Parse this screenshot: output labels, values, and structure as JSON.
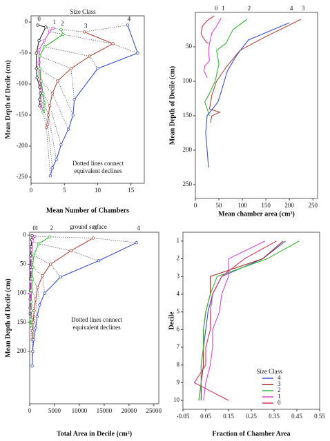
{
  "chart_data": [
    {
      "type": "line",
      "xlabel": "Mean Number of Chambers",
      "ylabel": "Mean Depth of Decile (cm)",
      "xlim": [
        0,
        17
      ],
      "ylim": [
        -260,
        10
      ],
      "xticks": [
        0,
        5,
        10,
        15
      ],
      "yticks": [
        0,
        -50,
        -100,
        -150,
        -200,
        -250
      ],
      "markers": true,
      "connectors": true,
      "y_inverted": false,
      "annotation": "Size Class",
      "note_lines": [
        "Dotted lines connect",
        "equivalent declines"
      ],
      "series": [
        {
          "name": "0",
          "color": "#222222",
          "x": [
            1,
            2.2,
            1.2,
            0.8,
            0.8,
            0.9,
            1.3,
            1.4,
            1.3,
            1.3
          ],
          "y": [
            -5,
            -8,
            -30,
            -50,
            -75,
            -90,
            -105,
            -115,
            -125,
            -135
          ]
        },
        {
          "name": "1",
          "color": "#e040e0",
          "x": [
            3.3,
            2.8,
            2,
            1.2,
            1.2,
            1.3,
            1.4,
            1.5,
            1.5,
            1.6
          ],
          "y": [
            -10,
            -15,
            -30,
            -45,
            -65,
            -80,
            -95,
            -110,
            -130,
            -140
          ]
        },
        {
          "name": "2",
          "color": "#2eb82e",
          "x": [
            4.5,
            4.8,
            2,
            1.3,
            1.3,
            1.5,
            1.8,
            2,
            1.9,
            1.8
          ],
          "y": [
            -12,
            -20,
            -40,
            -55,
            -75,
            -95,
            -115,
            -130,
            -140,
            -145
          ]
        },
        {
          "name": "3",
          "color": "#b04a3a",
          "x": [
            8,
            12.3,
            8.8,
            6,
            4,
            3.2,
            2.8,
            2.6,
            2.5,
            2.3
          ],
          "y": [
            -16,
            -35,
            -55,
            -75,
            -95,
            -115,
            -135,
            -150,
            -165,
            -170
          ]
        },
        {
          "name": "4",
          "color": "#3a4fd8",
          "x": [
            14.5,
            16,
            10,
            6.5,
            6.3,
            5.6,
            4.5,
            3.8,
            3.2,
            2.9
          ],
          "y": [
            -5,
            -50,
            -75,
            -125,
            -150,
            -173,
            -198,
            -222,
            -235,
            -248
          ]
        }
      ]
    },
    {
      "type": "line",
      "xlabel": "Mean chamber area (cm²)",
      "ylabel": "Mean Depth of Decile (cm)",
      "xlim": [
        0,
        260
      ],
      "ylim": [
        0,
        270
      ],
      "xticks": [
        0,
        50,
        100,
        150,
        200,
        250
      ],
      "yticks": [
        50,
        100,
        150,
        200,
        250
      ],
      "markers": false,
      "connectors": false,
      "y_inverted": true,
      "series": [
        {
          "name": "0",
          "color": "#e0304a",
          "x": [
            40,
            25,
            15,
            12,
            15,
            18,
            20,
            22,
            25,
            28
          ],
          "y": [
            5,
            12,
            20,
            30,
            35,
            38,
            40,
            42,
            44,
            45
          ]
        },
        {
          "name": "1",
          "color": "#e040e0",
          "x": [
            55,
            45,
            35,
            30,
            28,
            30,
            20,
            18,
            22,
            25
          ],
          "y": [
            8,
            20,
            30,
            45,
            55,
            70,
            78,
            85,
            90,
            95
          ]
        },
        {
          "name": "2",
          "color": "#2eb82e",
          "x": [
            110,
            80,
            65,
            45,
            50,
            42,
            28,
            20,
            25,
            30
          ],
          "y": [
            10,
            25,
            45,
            55,
            75,
            100,
            120,
            130,
            140,
            150
          ]
        },
        {
          "name": "3",
          "color": "#b04a3a",
          "x": [
            225,
            150,
            95,
            65,
            45,
            35,
            30,
            52,
            35,
            32
          ],
          "y": [
            10,
            35,
            55,
            80,
            100,
            120,
            140,
            145,
            150,
            160
          ]
        },
        {
          "name": "4",
          "color": "#3a4fd8",
          "x": [
            200,
            113,
            90,
            68,
            55,
            48,
            25,
            22,
            25,
            28
          ],
          "y": [
            15,
            40,
            60,
            85,
            115,
            130,
            150,
            175,
            200,
            225
          ]
        }
      ]
    },
    {
      "type": "line",
      "xlabel": "Total Area in Decile (cm²)",
      "ylabel": "Mean Depth of Decile (cm)",
      "xlim": [
        0,
        26000
      ],
      "ylim": [
        -5,
        290
      ],
      "xticks": [
        0,
        5000,
        10000,
        15000,
        20000,
        25000
      ],
      "yticks": [
        0,
        50,
        100,
        150,
        200
      ],
      "markers": true,
      "connectors": true,
      "y_inverted": true,
      "annotation": "ground surface",
      "note_lines": [
        "Dotted lines connect",
        "equivalent declines"
      ],
      "series": [
        {
          "name": "0",
          "color": "#222222",
          "x": [
            500,
            400,
            300,
            200,
            200,
            150,
            150,
            100,
            100,
            100
          ],
          "y": [
            1,
            8,
            20,
            35,
            55,
            75,
            95,
            110,
            125,
            135
          ]
        },
        {
          "name": "1",
          "color": "#e040e0",
          "x": [
            1000,
            600,
            400,
            300,
            300,
            250,
            200,
            200,
            150,
            150
          ],
          "y": [
            2,
            10,
            25,
            40,
            60,
            80,
            100,
            115,
            130,
            140
          ]
        },
        {
          "name": "2",
          "color": "#2eb82e",
          "x": [
            4000,
            1800,
            800,
            600,
            500,
            400,
            300,
            300,
            250,
            200
          ],
          "y": [
            3,
            15,
            35,
            55,
            75,
            95,
            115,
            130,
            145,
            155
          ]
        },
        {
          "name": "3",
          "color": "#b04a3a",
          "x": [
            12800,
            8300,
            4200,
            2600,
            1600,
            1200,
            900,
            700,
            600,
            500
          ],
          "y": [
            5,
            27,
            50,
            70,
            90,
            110,
            130,
            150,
            165,
            180
          ]
        },
        {
          "name": "4",
          "color": "#3a4fd8",
          "x": [
            21500,
            13900,
            6200,
            3000,
            2000,
            1500,
            1200,
            800,
            600,
            500
          ],
          "y": [
            13,
            44,
            72,
            100,
            120,
            140,
            160,
            180,
            200,
            225
          ]
        }
      ]
    },
    {
      "type": "line",
      "xlabel": "Fraction of Chamber Area",
      "ylabel": "Decile",
      "xlim": [
        -0.05,
        0.55
      ],
      "ylim": [
        0.5,
        10.5
      ],
      "xticks": [
        -0.05,
        0.05,
        0.15,
        0.25,
        0.35,
        0.45,
        0.55
      ],
      "yticks": [
        1,
        2,
        3,
        4,
        5,
        6,
        7,
        8,
        9,
        10
      ],
      "markers": false,
      "connectors": false,
      "y_inverted": true,
      "legend_title": "Size Class",
      "y": [
        1,
        2,
        3,
        4,
        5,
        6,
        7,
        8,
        9,
        10
      ],
      "series": [
        {
          "name": "4",
          "color": "#3a4fd8",
          "x": [
            0.4,
            0.3,
            0.12,
            0.08,
            0.06,
            0.05,
            0.04,
            0.03,
            0.03,
            0.02
          ]
        },
        {
          "name": "3",
          "color": "#a02a1a",
          "x": [
            0.39,
            0.3,
            0.07,
            0.07,
            0.05,
            0.04,
            0.04,
            0.04,
            0.03,
            0.03
          ]
        },
        {
          "name": "2",
          "color": "#2eb82e",
          "x": [
            0.46,
            0.32,
            0.1,
            0.07,
            0.05,
            0.04,
            0.04,
            0.03,
            0.03,
            0.02
          ]
        },
        {
          "name": "1",
          "color": "#e040e0",
          "x": [
            0.31,
            0.15,
            0.15,
            0.12,
            0.11,
            0.08,
            0.08,
            0.07,
            0.05,
            0.04
          ]
        },
        {
          "name": "0",
          "color": "#e0305a",
          "x": [
            0.36,
            0.22,
            0.12,
            0.08,
            0.07,
            0.07,
            0.05,
            0.05,
            0.0,
            0.15
          ]
        }
      ]
    }
  ]
}
